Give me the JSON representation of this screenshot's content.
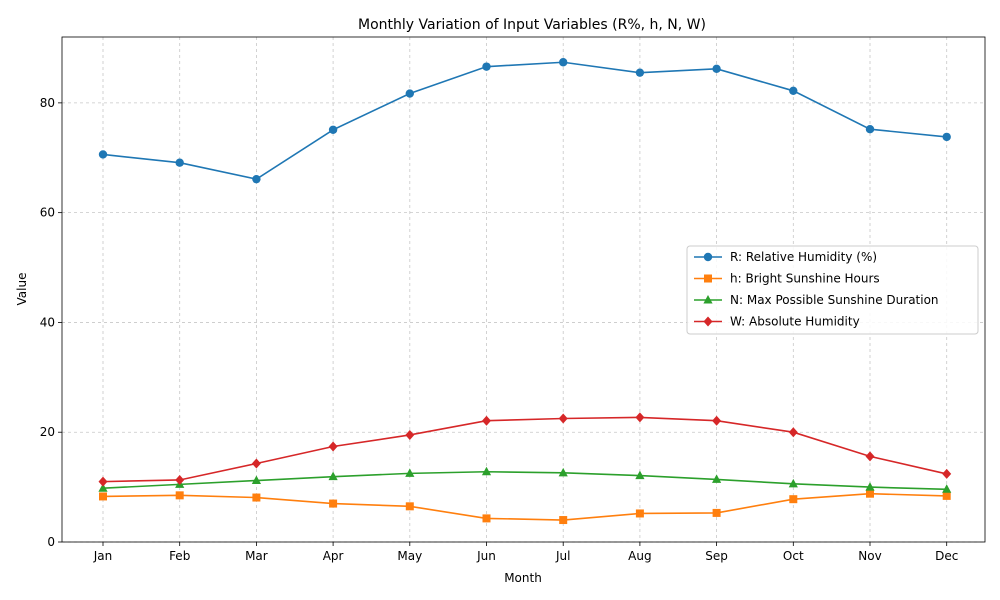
{
  "chart_data": {
    "type": "line",
    "title": "Monthly Variation of Input Variables (R%, h, N, W)",
    "xlabel": "Month",
    "ylabel": "Value",
    "categories": [
      "Jan",
      "Feb",
      "Mar",
      "Apr",
      "May",
      "Jun",
      "Jul",
      "Aug",
      "Sep",
      "Oct",
      "Nov",
      "Dec"
    ],
    "ylim": [
      0,
      92
    ],
    "yticks": [
      0,
      20,
      40,
      60,
      80
    ],
    "grid": true,
    "legend_position": "center-right",
    "series": [
      {
        "name": "R: Relative Humidity (%)",
        "color": "#1f77b4",
        "marker": "circle",
        "values": [
          70.6,
          69.1,
          66.1,
          75.1,
          81.7,
          86.6,
          87.4,
          85.5,
          86.2,
          82.2,
          75.2,
          73.8
        ]
      },
      {
        "name": "h: Bright Sunshine Hours",
        "color": "#ff7f0e",
        "marker": "square",
        "values": [
          8.3,
          8.5,
          8.1,
          7.0,
          6.5,
          4.3,
          4.0,
          5.2,
          5.3,
          7.8,
          8.8,
          8.4
        ]
      },
      {
        "name": "N: Max Possible Sunshine Duration",
        "color": "#2ca02c",
        "marker": "triangle",
        "values": [
          9.8,
          10.5,
          11.2,
          11.9,
          12.5,
          12.8,
          12.6,
          12.1,
          11.4,
          10.6,
          10.0,
          9.6
        ]
      },
      {
        "name": "W: Absolute Humidity",
        "color": "#d62728",
        "marker": "diamond",
        "values": [
          11.0,
          11.3,
          14.3,
          17.4,
          19.5,
          22.1,
          22.5,
          22.7,
          22.1,
          20.0,
          15.6,
          12.4
        ]
      }
    ]
  }
}
